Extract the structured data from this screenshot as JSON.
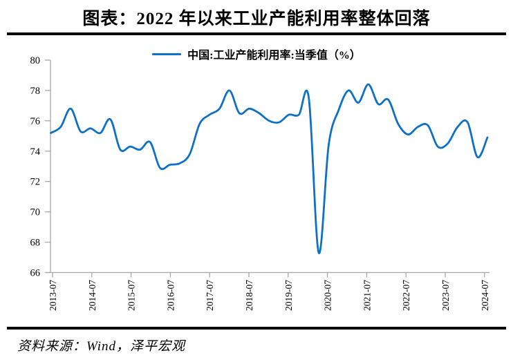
{
  "title": "图表：2022 年以来工业产能利用率整体回落",
  "legend": "中国:工业产能利用率:当季值（%）",
  "source": "资料来源：Wind，泽平宏观",
  "colors": {
    "line": "#0F70C8",
    "axis": "#A6A6A6",
    "text": "#000000",
    "divider": "#000000"
  },
  "chart_data": {
    "type": "line",
    "title": "图表：2022 年以来工业产能利用率整体回落",
    "ylabel": "",
    "xlabel": "",
    "ylim": [
      66,
      80
    ],
    "ytick_step": 2,
    "grid": false,
    "legend_position": "top",
    "xticks": [
      "2013-07",
      "2014-07",
      "2015-07",
      "2016-07",
      "2017-07",
      "2018-07",
      "2019-07",
      "2020-07",
      "2021-07",
      "2022-07",
      "2023-07",
      "2024-07"
    ],
    "x": [
      "2013-06",
      "2013-09",
      "2013-12",
      "2014-03",
      "2014-06",
      "2014-09",
      "2014-12",
      "2015-03",
      "2015-06",
      "2015-09",
      "2015-12",
      "2016-03",
      "2016-06",
      "2016-09",
      "2016-12",
      "2017-03",
      "2017-06",
      "2017-09",
      "2017-12",
      "2018-03",
      "2018-06",
      "2018-09",
      "2018-12",
      "2019-03",
      "2019-06",
      "2019-09",
      "2019-12",
      "2020-03",
      "2020-06",
      "2020-09",
      "2020-12",
      "2021-03",
      "2021-06",
      "2021-09",
      "2021-12",
      "2022-03",
      "2022-06",
      "2022-09",
      "2022-12",
      "2023-03",
      "2023-06",
      "2023-09",
      "2023-12",
      "2024-03",
      "2024-06"
    ],
    "series": [
      {
        "name": "中国:工业产能利用率:当季值（%）",
        "values": [
          75.2,
          75.6,
          76.8,
          75.3,
          75.5,
          75.2,
          76.1,
          74.1,
          74.3,
          74.1,
          74.6,
          72.9,
          73.1,
          73.2,
          73.8,
          75.8,
          76.4,
          76.8,
          78.0,
          76.5,
          76.8,
          76.5,
          76.0,
          75.9,
          76.4,
          76.4,
          77.5,
          67.3,
          74.4,
          76.7,
          78.0,
          77.2,
          78.4,
          77.1,
          77.4,
          75.8,
          75.1,
          75.6,
          75.7,
          74.3,
          74.5,
          75.6,
          75.9,
          73.6,
          74.9
        ]
      }
    ]
  }
}
